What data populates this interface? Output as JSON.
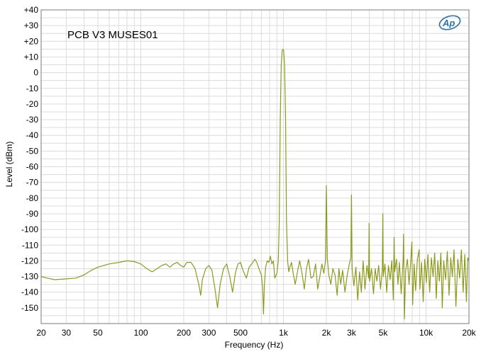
{
  "chart_data": {
    "type": "line",
    "title": "PCB V3  MUSES01",
    "xlabel": "Frequency (Hz)",
    "ylabel": "Level (dBm)",
    "xscale": "log",
    "xlim": [
      20,
      20000
    ],
    "ylim": [
      -160,
      40
    ],
    "grid": true,
    "logo": "Ap",
    "x_ticks": [
      {
        "value": 20,
        "label": "20"
      },
      {
        "value": 30,
        "label": "30"
      },
      {
        "value": 50,
        "label": "50"
      },
      {
        "value": 100,
        "label": "100"
      },
      {
        "value": 200,
        "label": "200"
      },
      {
        "value": 300,
        "label": "300"
      },
      {
        "value": 500,
        "label": "500"
      },
      {
        "value": 1000,
        "label": "1k"
      },
      {
        "value": 2000,
        "label": "2k"
      },
      {
        "value": 3000,
        "label": "3k"
      },
      {
        "value": 5000,
        "label": "5k"
      },
      {
        "value": 10000,
        "label": "10k"
      },
      {
        "value": 20000,
        "label": "20k"
      }
    ],
    "y_ticks": [
      {
        "value": 40,
        "label": "+40"
      },
      {
        "value": 30,
        "label": "+30"
      },
      {
        "value": 20,
        "label": "+20"
      },
      {
        "value": 10,
        "label": "+10"
      },
      {
        "value": 0,
        "label": "0"
      },
      {
        "value": -10,
        "label": "-10"
      },
      {
        "value": -20,
        "label": "-20"
      },
      {
        "value": -30,
        "label": "-30"
      },
      {
        "value": -40,
        "label": "-40"
      },
      {
        "value": -50,
        "label": "-50"
      },
      {
        "value": -60,
        "label": "-60"
      },
      {
        "value": -70,
        "label": "-70"
      },
      {
        "value": -80,
        "label": "-80"
      },
      {
        "value": -90,
        "label": "-90"
      },
      {
        "value": -100,
        "label": "-100"
      },
      {
        "value": -110,
        "label": "-110"
      },
      {
        "value": -120,
        "label": "-120"
      },
      {
        "value": -130,
        "label": "-130"
      },
      {
        "value": -140,
        "label": "-140"
      },
      {
        "value": -150,
        "label": "-150"
      }
    ],
    "colors": {
      "series": "#8c9a1c",
      "grid": "#dcdcdc",
      "frame": "#7a7a7a",
      "logo": "#2a6fb0"
    },
    "series": [
      {
        "points": [
          [
            20,
            -130
          ],
          [
            22,
            -131
          ],
          [
            25,
            -132
          ],
          [
            30,
            -131.5
          ],
          [
            35,
            -131
          ],
          [
            40,
            -129
          ],
          [
            45,
            -126
          ],
          [
            50,
            -124
          ],
          [
            55,
            -123
          ],
          [
            60,
            -122
          ],
          [
            70,
            -121
          ],
          [
            80,
            -120
          ],
          [
            90,
            -120.5
          ],
          [
            100,
            -122
          ],
          [
            110,
            -125
          ],
          [
            120,
            -127
          ],
          [
            130,
            -125
          ],
          [
            140,
            -123
          ],
          [
            150,
            -122
          ],
          [
            160,
            -124
          ],
          [
            170,
            -122
          ],
          [
            180,
            -121
          ],
          [
            190,
            -123
          ],
          [
            200,
            -124
          ],
          [
            210,
            -121
          ],
          [
            225,
            -121
          ],
          [
            240,
            -125
          ],
          [
            255,
            -135
          ],
          [
            263,
            -142
          ],
          [
            270,
            -132
          ],
          [
            285,
            -125
          ],
          [
            300,
            -123
          ],
          [
            315,
            -126
          ],
          [
            330,
            -137
          ],
          [
            345,
            -150
          ],
          [
            360,
            -135
          ],
          [
            380,
            -125
          ],
          [
            400,
            -122
          ],
          [
            420,
            -130
          ],
          [
            440,
            -140
          ],
          [
            460,
            -128
          ],
          [
            480,
            -122
          ],
          [
            500,
            -121
          ],
          [
            520,
            -126
          ],
          [
            550,
            -131
          ],
          [
            575,
            -124
          ],
          [
            600,
            -122
          ],
          [
            630,
            -119
          ],
          [
            650,
            -121
          ],
          [
            680,
            -126
          ],
          [
            700,
            -129
          ],
          [
            715,
            -137
          ],
          [
            725,
            -154
          ],
          [
            735,
            -136
          ],
          [
            750,
            -124
          ],
          [
            770,
            -120
          ],
          [
            790,
            -121
          ],
          [
            810,
            -117
          ],
          [
            830,
            -122
          ],
          [
            850,
            -120
          ],
          [
            870,
            -131
          ],
          [
            900,
            -128
          ],
          [
            920,
            -120
          ],
          [
            935,
            -95
          ],
          [
            950,
            -30
          ],
          [
            965,
            5
          ],
          [
            980,
            14
          ],
          [
            993,
            15
          ],
          [
            1003,
            14
          ],
          [
            1018,
            5
          ],
          [
            1035,
            -30
          ],
          [
            1050,
            -95
          ],
          [
            1070,
            -120
          ],
          [
            1090,
            -127
          ],
          [
            1110,
            -124
          ],
          [
            1140,
            -121
          ],
          [
            1170,
            -128
          ],
          [
            1210,
            -135
          ],
          [
            1260,
            -126
          ],
          [
            1300,
            -120
          ],
          [
            1350,
            -128
          ],
          [
            1400,
            -138
          ],
          [
            1450,
            -125
          ],
          [
            1500,
            -119
          ],
          [
            1560,
            -131
          ],
          [
            1620,
            -130
          ],
          [
            1680,
            -122
          ],
          [
            1740,
            -138
          ],
          [
            1800,
            -130
          ],
          [
            1860,
            -122
          ],
          [
            1920,
            -128
          ],
          [
            1970,
            -120
          ],
          [
            2000,
            -72
          ],
          [
            2030,
            -118
          ],
          [
            2080,
            -129
          ],
          [
            2150,
            -135
          ],
          [
            2220,
            -125
          ],
          [
            2300,
            -129
          ],
          [
            2380,
            -142
          ],
          [
            2450,
            -125
          ],
          [
            2520,
            -135
          ],
          [
            2600,
            -126
          ],
          [
            2700,
            -140
          ],
          [
            2800,
            -129
          ],
          [
            2900,
            -122
          ],
          [
            2970,
            -118
          ],
          [
            3000,
            -78
          ],
          [
            3030,
            -125
          ],
          [
            3120,
            -136
          ],
          [
            3220,
            -124
          ],
          [
            3320,
            -145
          ],
          [
            3420,
            -127
          ],
          [
            3520,
            -140
          ],
          [
            3620,
            -120
          ],
          [
            3730,
            -138
          ],
          [
            3850,
            -123
          ],
          [
            3960,
            -131
          ],
          [
            3990,
            -96
          ],
          [
            4020,
            -133
          ],
          [
            4150,
            -125
          ],
          [
            4280,
            -141
          ],
          [
            4400,
            -125
          ],
          [
            4520,
            -133
          ],
          [
            4650,
            -123
          ],
          [
            4800,
            -138
          ],
          [
            4940,
            -125
          ],
          [
            4980,
            -90
          ],
          [
            5020,
            -130
          ],
          [
            5150,
            -122
          ],
          [
            5300,
            -140
          ],
          [
            5450,
            -123
          ],
          [
            5600,
            -132
          ],
          [
            5750,
            -120
          ],
          [
            5900,
            -145
          ],
          [
            5970,
            -105
          ],
          [
            6030,
            -127
          ],
          [
            6200,
            -119
          ],
          [
            6350,
            -135
          ],
          [
            6500,
            -121
          ],
          [
            6700,
            -141
          ],
          [
            6900,
            -120
          ],
          [
            6960,
            -103
          ],
          [
            7050,
            -157
          ],
          [
            7200,
            -126
          ],
          [
            7400,
            -119
          ],
          [
            7600,
            -135
          ],
          [
            7800,
            -121
          ],
          [
            7950,
            -108
          ],
          [
            8050,
            -148
          ],
          [
            8250,
            -122
          ],
          [
            8450,
            -139
          ],
          [
            8700,
            -119
          ],
          [
            8950,
            -113
          ],
          [
            9050,
            -138
          ],
          [
            9300,
            -121
          ],
          [
            9550,
            -146
          ],
          [
            9800,
            -119
          ],
          [
            10050,
            -134
          ],
          [
            10300,
            -116
          ],
          [
            10600,
            -140
          ],
          [
            10900,
            -118
          ],
          [
            11200,
            -130
          ],
          [
            11500,
            -115
          ],
          [
            11800,
            -144
          ],
          [
            12100,
            -120
          ],
          [
            12400,
            -133
          ],
          [
            12700,
            -115
          ],
          [
            13000,
            -150
          ],
          [
            13300,
            -120
          ],
          [
            13700,
            -132
          ],
          [
            14100,
            -114
          ],
          [
            14500,
            -142
          ],
          [
            14900,
            -118
          ],
          [
            15300,
            -130
          ],
          [
            15700,
            -113
          ],
          [
            16200,
            -149
          ],
          [
            16700,
            -119
          ],
          [
            17200,
            -131
          ],
          [
            17700,
            -113
          ],
          [
            18200,
            -140
          ],
          [
            18700,
            -116
          ],
          [
            19200,
            -146
          ],
          [
            19600,
            -118
          ],
          [
            20000,
            -120
          ]
        ]
      }
    ]
  }
}
